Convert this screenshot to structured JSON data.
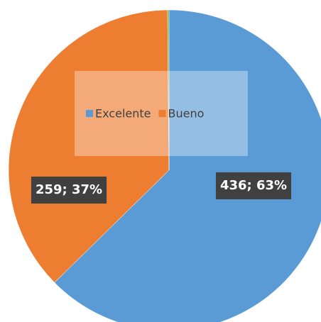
{
  "chart_data": {
    "type": "pie",
    "categories": [
      "Excelente",
      "Bueno",
      null
    ],
    "values": [
      436,
      259,
      1
    ],
    "value_labels": [
      "436; 63%",
      "259; 37%",
      null
    ],
    "colors": [
      "#5b9bd5",
      "#ed7d31",
      "#70ad47"
    ],
    "legend": "center"
  }
}
